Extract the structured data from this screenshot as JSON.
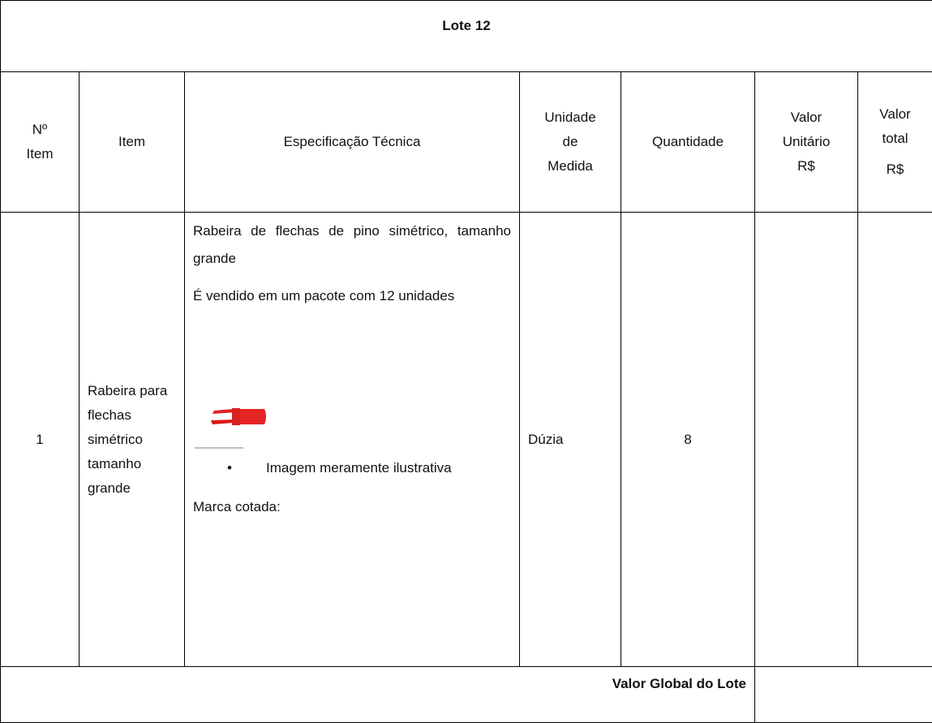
{
  "title": "Lote 12",
  "header": [
    [
      "Nº",
      "Item"
    ],
    [
      "Item"
    ],
    [
      "Especificação Técnica"
    ],
    [
      "Unidade",
      "de",
      "Medida"
    ],
    [
      "Quantidade"
    ],
    [
      "Valor",
      "Unitário",
      "R$"
    ],
    [
      "Valor",
      "total",
      "R$"
    ]
  ],
  "row": {
    "number": "1",
    "item": "Rabeira para flechas simétrico tamanho grande",
    "specification": {
      "paragraphs": [
        "Rabeira de flechas de pino simétrico, tamanho grande",
        "É vendido em um pacote com 12 unidades"
      ],
      "bullet": "Imagem meramente ilustrativa",
      "brand": "Marca cotada:"
    },
    "unit": "Dúzia",
    "quantity": "8"
  },
  "footer": "Valor Global do Lote"
}
